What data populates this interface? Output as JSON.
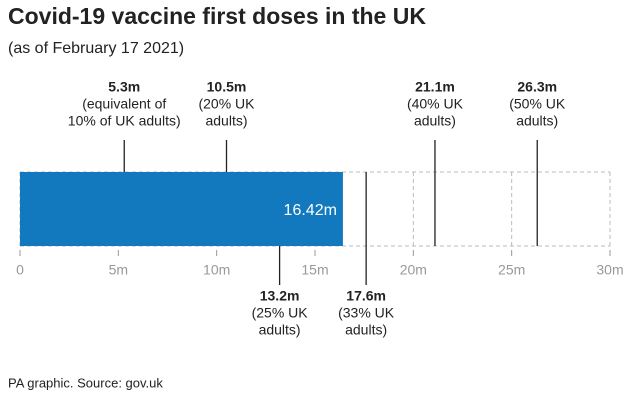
{
  "chart_data": {
    "type": "bar",
    "title": "Covid-19 vaccine first doses in the UK",
    "subtitle": "(as of February 17 2021)",
    "source": "PA graphic. Source: gov.uk",
    "values": [
      16.42
    ],
    "value_labels": [
      "16.42m"
    ],
    "color": "#1279be",
    "xlim": [
      0,
      30
    ],
    "xticks": [
      0,
      {
        "value": 5,
        "label": "5m"
      },
      {
        "value": 10,
        "label": "10m"
      },
      {
        "value": 15,
        "label": "15m"
      },
      {
        "value": 20,
        "label": "20m"
      },
      {
        "value": 25,
        "label": "25m"
      },
      {
        "value": 30,
        "label": "30m"
      }
    ],
    "grid": true,
    "markers_above": [
      {
        "value": 5.3,
        "label": "5.3m",
        "text": [
          "(equivalent of",
          "10% of UK adults)"
        ]
      },
      {
        "value": 10.5,
        "label": "10.5m",
        "text": [
          "(20% UK",
          "adults)"
        ]
      },
      {
        "value": 21.1,
        "label": "21.1m",
        "text": [
          "(40% UK",
          "adults)"
        ]
      },
      {
        "value": 26.3,
        "label": "26.3m",
        "text": [
          "(50% UK",
          "adults)"
        ]
      }
    ],
    "markers_below": [
      {
        "value": 13.2,
        "label": "13.2m",
        "text": [
          "(25% UK",
          "adults)"
        ]
      },
      {
        "value": 17.6,
        "label": "17.6m",
        "text": [
          "(33% UK",
          "adults)"
        ]
      }
    ]
  }
}
